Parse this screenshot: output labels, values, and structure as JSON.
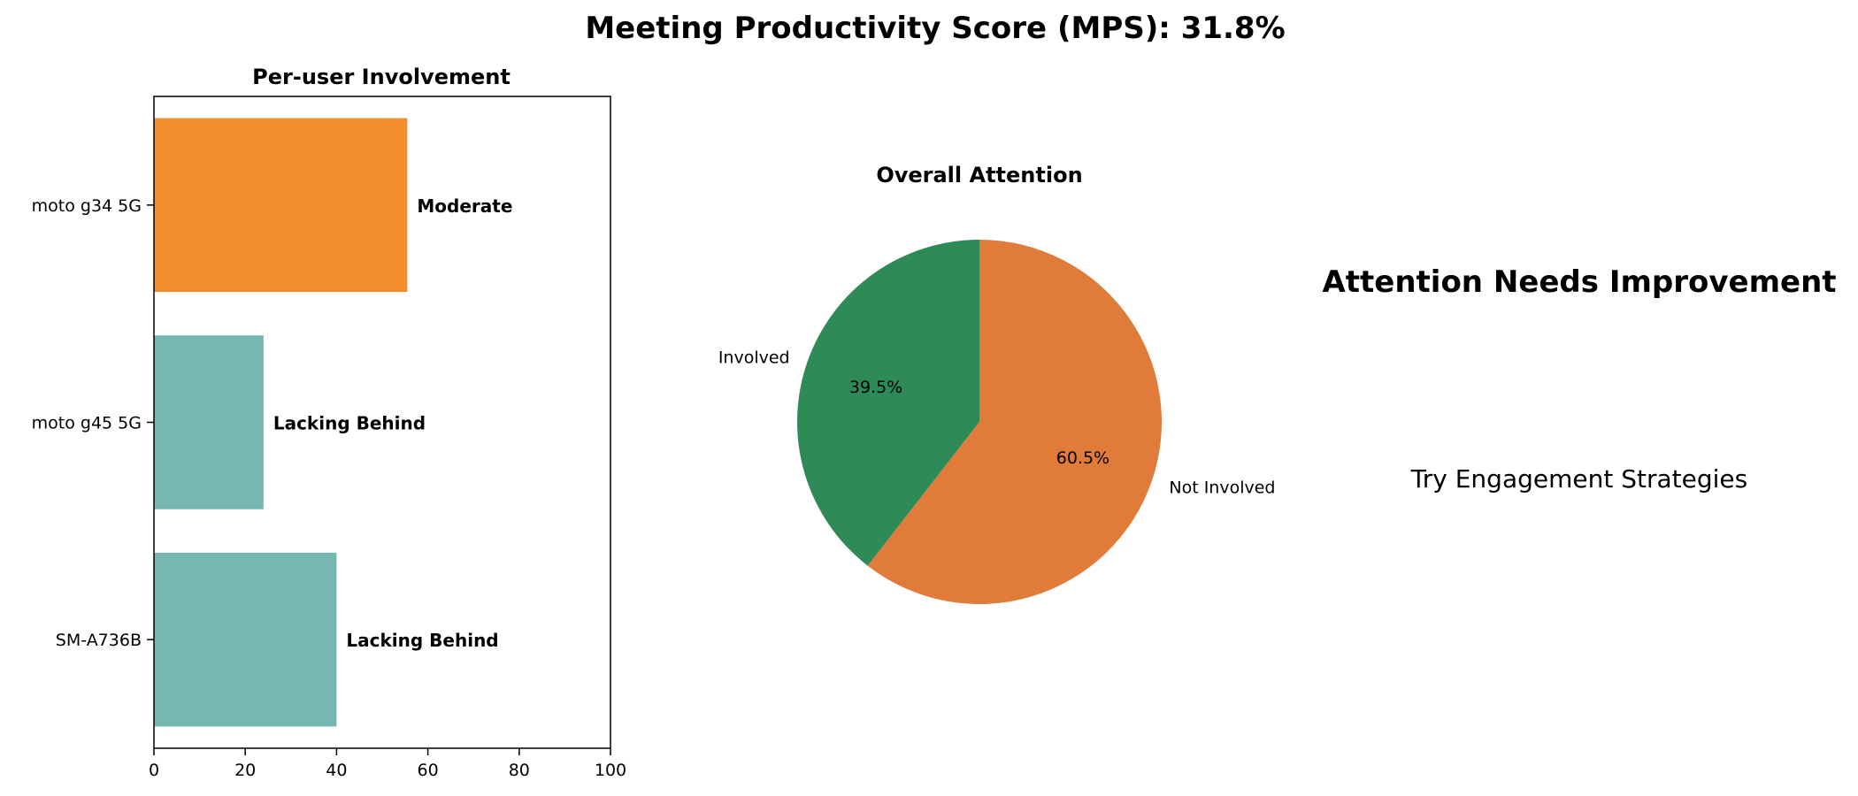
{
  "figure": {
    "title": "Meeting Productivity Score (MPS): 31.8%"
  },
  "chart_data": [
    {
      "type": "bar",
      "orientation": "horizontal",
      "title": "Per-user Involvement",
      "categories": [
        "moto g34 5G",
        "moto g45 5G",
        "SM-A736B"
      ],
      "values": [
        55.5,
        24,
        40
      ],
      "bar_labels": [
        "Moderate",
        "Lacking Behind",
        "Lacking Behind"
      ],
      "bar_colors": [
        "#f28e2b",
        "#76b7b2",
        "#76b7b2"
      ],
      "xlim": [
        0,
        100
      ],
      "xticks": [
        0,
        20,
        40,
        60,
        80,
        100
      ],
      "xlabel": "",
      "ylabel": ""
    },
    {
      "type": "pie",
      "title": "Overall Attention",
      "labels": [
        "Involved",
        "Not Involved"
      ],
      "values": [
        39.5,
        60.5
      ],
      "pct_labels": [
        "39.5%",
        "60.5%"
      ],
      "colors": [
        "#2e8b57",
        "#e07b39"
      ]
    }
  ],
  "status_panel": {
    "headline": "Attention Needs Improvement",
    "recommendation": "Try Engagement Strategies"
  }
}
